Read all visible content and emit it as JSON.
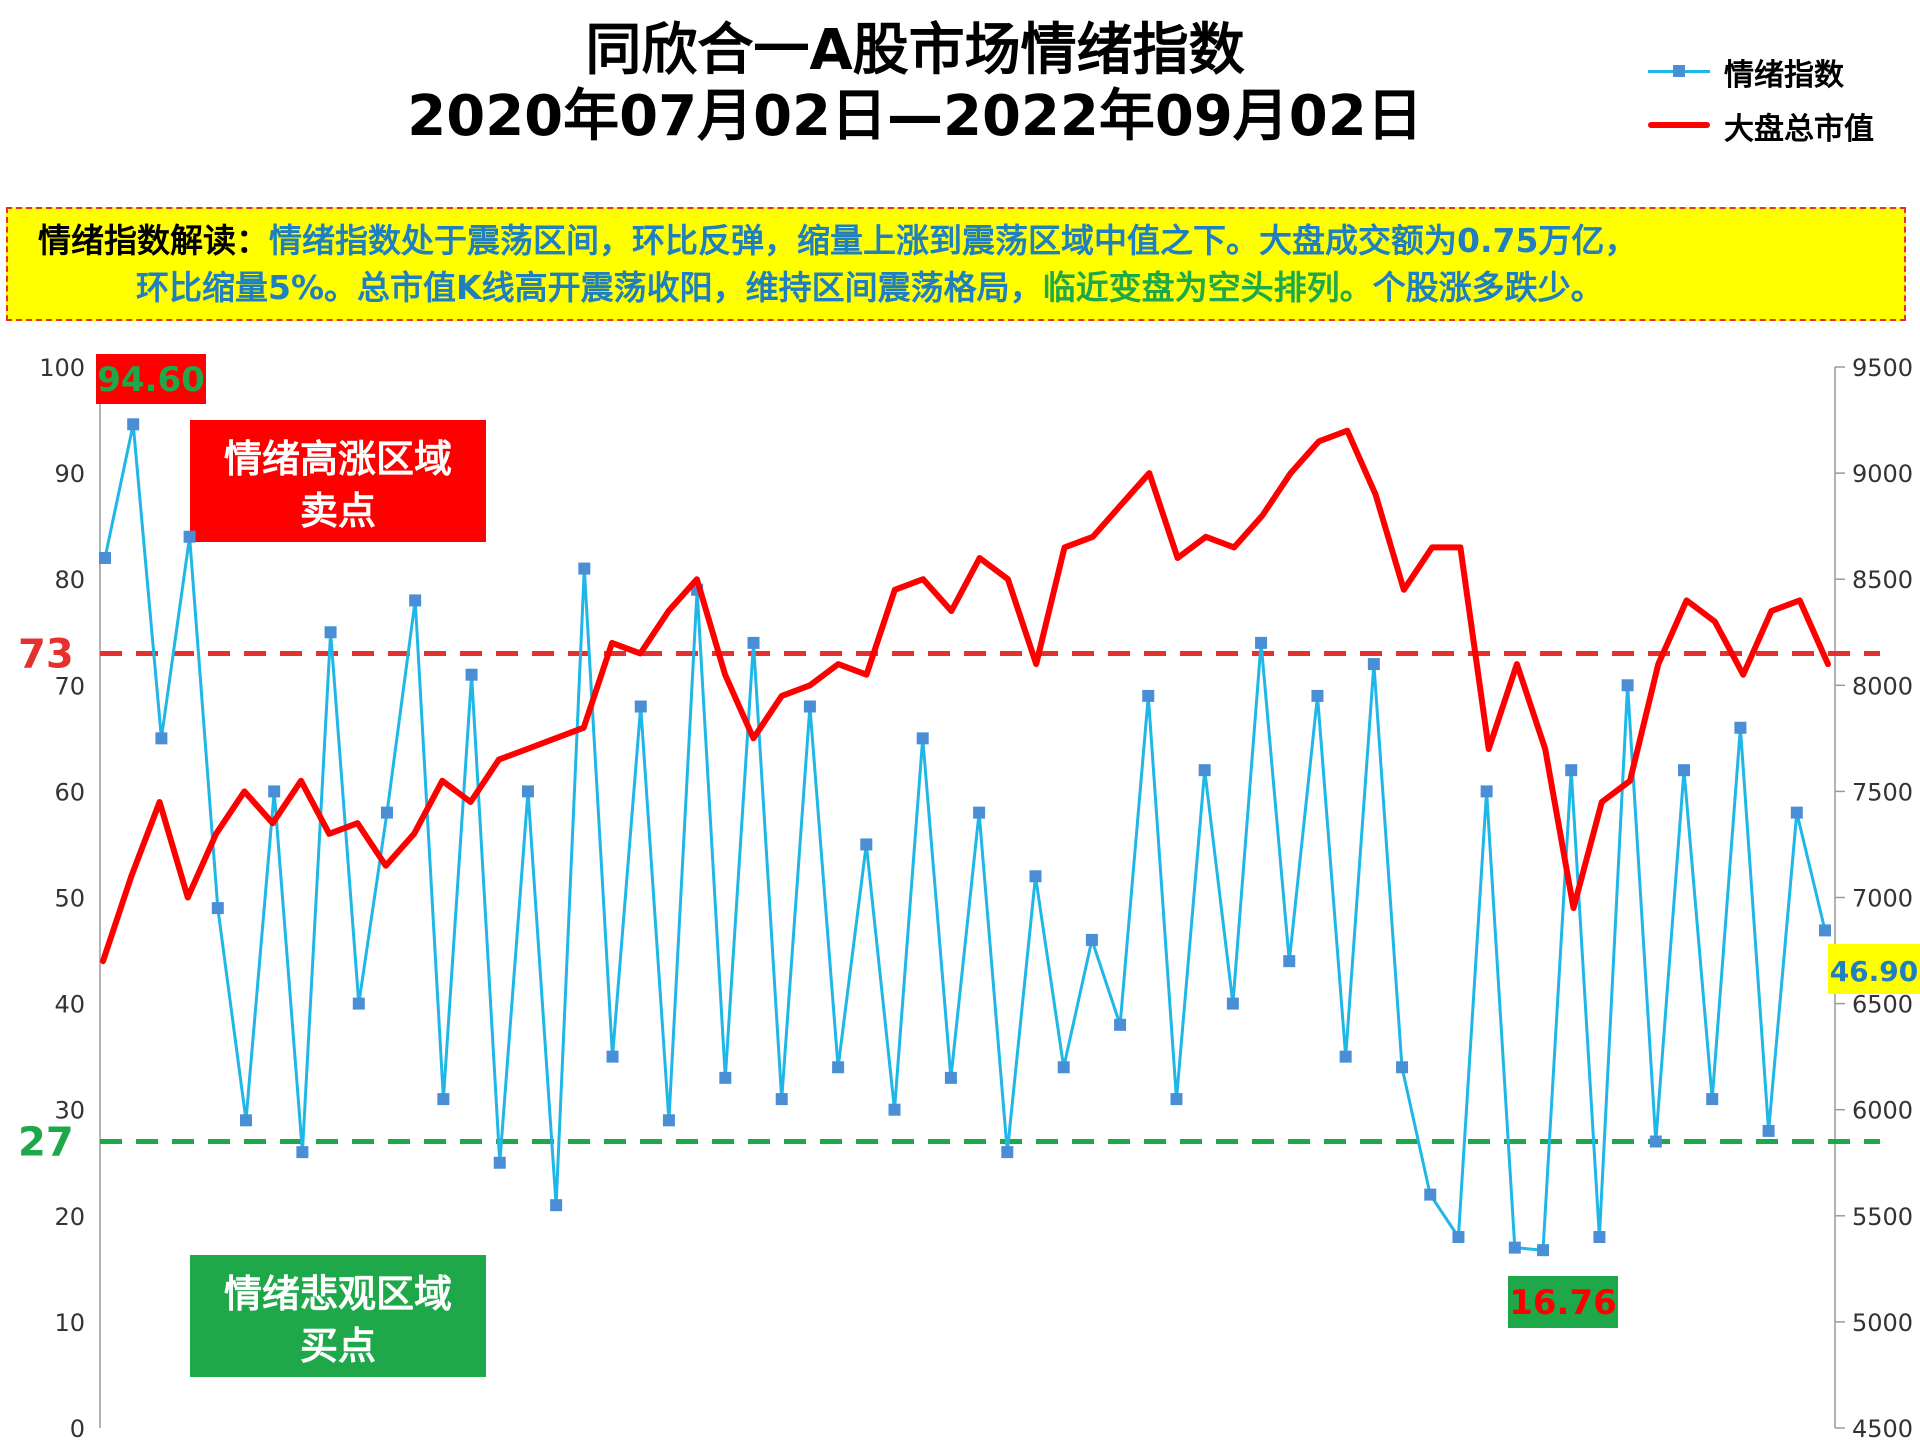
{
  "title": {
    "line1": "同欣合一A股市场情绪指数",
    "line2": "2020年07月02日—2022年09月02日"
  },
  "legend": [
    {
      "label": "情绪指数",
      "color": "#1fb6e8",
      "marker": "square-marker"
    },
    {
      "label": "大盘总市值",
      "color": "#ff0000"
    }
  ],
  "note": {
    "heading": "情绪指数解读：",
    "line1": "情绪指数处于震荡区间，环比反弹，缩量上涨到震荡区域中值之下。大盘成交额为0.75万亿，",
    "line2_part1": "环比缩量5%。总市值K线高开震荡收阳，维持区间震荡格局，",
    "line2_part2": "临近变盘为空头排列。",
    "line2_part3": "个股涨多跌少。"
  },
  "chart_data": {
    "type": "line",
    "left_axis": {
      "min": 0,
      "max": 100,
      "step": 10,
      "ticks": [
        "0",
        "10",
        "20",
        "30",
        "40",
        "50",
        "60",
        "70",
        "80",
        "90",
        "100"
      ]
    },
    "right_axis": {
      "min": 4500,
      "max": 9500,
      "step": 500,
      "ticks": [
        "4500",
        "5000",
        "5500",
        "6000",
        "6500",
        "7000",
        "7500",
        "8000",
        "8500",
        "9000",
        "9500"
      ]
    },
    "reference_lines": [
      {
        "value": 73,
        "label": "73",
        "color": "#e53030"
      },
      {
        "value": 27,
        "label": "27",
        "color": "#1fa84a"
      }
    ],
    "zones": [
      {
        "line1": "情绪高涨区域",
        "line2": "卖点",
        "color": "#ff0000"
      },
      {
        "line1": "情绪悲观区域",
        "line2": "买点",
        "color": "#1fa84a"
      }
    ],
    "annotations": [
      {
        "text": "94.60",
        "bg": "#ff0000",
        "color": "#1fa84a"
      },
      {
        "text": "16.76",
        "bg": "#1fa84a",
        "color": "#ff0000"
      },
      {
        "text": "46.90",
        "bg": "#ffff00",
        "color": "#1f7fbf"
      }
    ],
    "series": [
      {
        "name": "情绪指数",
        "axis": "left",
        "color": "#1fb6e8",
        "note": "approximate sampled values (original is a daily series)",
        "values": [
          82,
          94.6,
          65,
          84,
          49,
          29,
          60,
          26,
          75,
          40,
          58,
          78,
          31,
          71,
          25,
          60,
          21,
          81,
          35,
          68,
          29,
          79,
          33,
          74,
          31,
          68,
          34,
          55,
          30,
          65,
          33,
          58,
          26,
          52,
          34,
          46,
          38,
          69,
          31,
          62,
          40,
          74,
          44,
          69,
          35,
          72,
          34,
          22,
          18,
          60,
          17,
          16.76,
          62,
          18,
          70,
          27,
          62,
          31,
          66,
          28,
          58,
          46.9
        ]
      },
      {
        "name": "大盘总市值",
        "axis": "right",
        "color": "#ff0000",
        "note": "approximate sampled values",
        "values": [
          6700,
          7100,
          7450,
          7000,
          7300,
          7500,
          7350,
          7550,
          7300,
          7350,
          7150,
          7300,
          7550,
          7450,
          7650,
          7700,
          7750,
          7800,
          8200,
          8150,
          8350,
          8500,
          8050,
          7750,
          7950,
          8000,
          8100,
          8050,
          8450,
          8500,
          8350,
          8600,
          8500,
          8100,
          8650,
          8700,
          8850,
          9000,
          8600,
          8700,
          8650,
          8800,
          9000,
          9150,
          9200,
          8900,
          8450,
          8650,
          8650,
          7700,
          8100,
          7700,
          6950,
          7450,
          7550,
          8100,
          8400,
          8300,
          8050,
          8350,
          8400,
          8100
        ]
      }
    ]
  }
}
